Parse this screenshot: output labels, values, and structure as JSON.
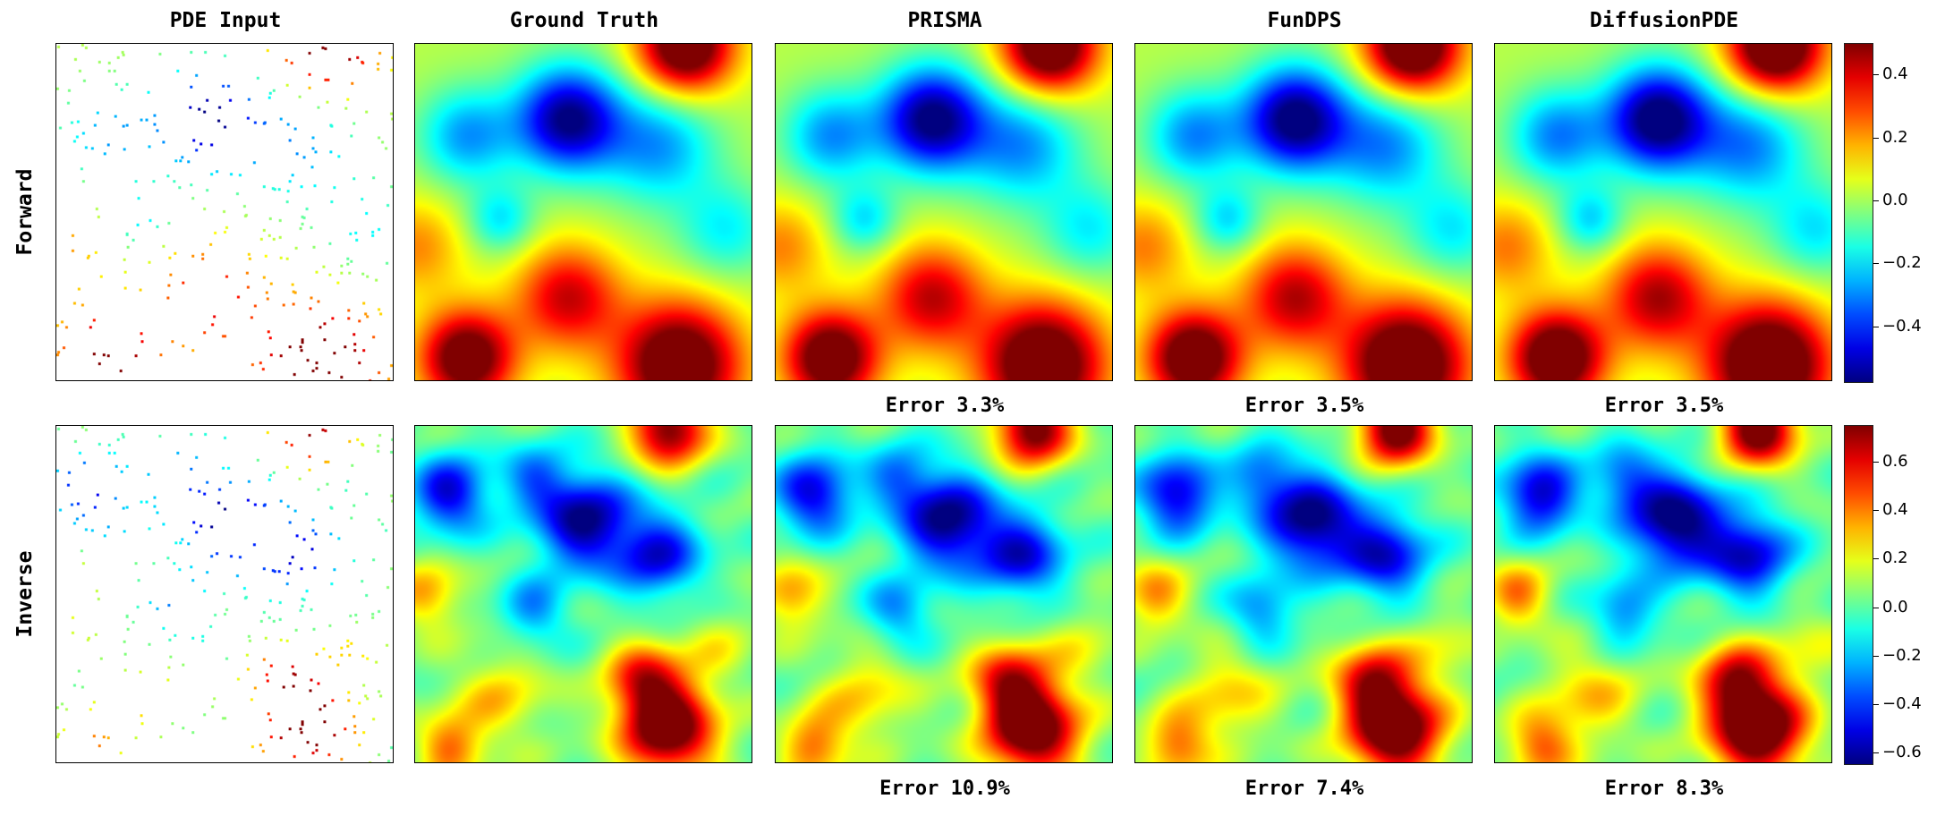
{
  "chart_data": {
    "type": "heatmap",
    "colormap": "jet",
    "columns": [
      "PDE Input",
      "Ground Truth",
      "PRISMA",
      "FunDPS",
      "DiffusionPDE"
    ],
    "rows": [
      "Forward",
      "Inverse"
    ],
    "errors": {
      "Forward": {
        "PRISMA": "Error 3.3%",
        "FunDPS": "Error 3.5%",
        "DiffusionPDE": "Error 3.5%"
      },
      "Inverse": {
        "PRISMA": "Error 10.9%",
        "FunDPS": "Error 7.4%",
        "DiffusionPDE": "Error 8.3%"
      }
    },
    "colorbars": [
      {
        "row": "Forward",
        "range": [
          -0.58,
          0.5
        ],
        "ticks": [
          0.4,
          0.2,
          0.0,
          -0.2,
          -0.4
        ],
        "tick_labels": [
          "0.4",
          "0.2",
          "0.0",
          "−0.2",
          "−0.4"
        ]
      },
      {
        "row": "Inverse",
        "range": [
          -0.65,
          0.75
        ],
        "ticks": [
          0.6,
          0.4,
          0.2,
          0.0,
          -0.2,
          -0.4,
          -0.6
        ],
        "tick_labels": [
          "0.6",
          "0.4",
          "0.2",
          "0.0",
          "−0.2",
          "−0.4",
          "−0.6"
        ]
      }
    ]
  }
}
